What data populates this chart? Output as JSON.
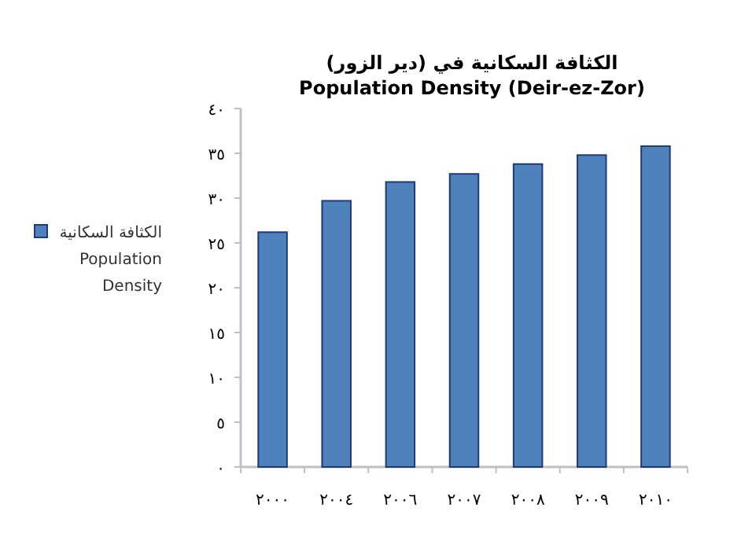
{
  "chart_data": {
    "type": "bar",
    "title": "الكثافة السكانية في (دير الزور)",
    "subtitle": "Population Density (Deir-ez-Zor)",
    "categories": [
      "٢٠٠٠",
      "٢٠٠٤",
      "٢٠٠٦",
      "٢٠٠٧",
      "٢٠٠٨",
      "٢٠٠٩",
      "٢٠١٠"
    ],
    "series": [
      {
        "name": "الكثافة السكانية\nPopulation\nDensity",
        "color": "#4f81bd",
        "values": [
          26.2,
          29.7,
          31.8,
          32.7,
          33.8,
          34.8,
          35.8
        ]
      }
    ],
    "ylim": [
      0,
      40
    ],
    "yticks": [
      {
        "value": 0,
        "label": "٠"
      },
      {
        "value": 5,
        "label": "٥"
      },
      {
        "value": 10,
        "label": "١٠"
      },
      {
        "value": 15,
        "label": "١٥"
      },
      {
        "value": 20,
        "label": "٢٠"
      },
      {
        "value": 25,
        "label": "٢٥"
      },
      {
        "value": 30,
        "label": "٣٠"
      },
      {
        "value": 35,
        "label": "٣٥"
      },
      {
        "value": 40,
        "label": "٤٠"
      }
    ],
    "legend": "left",
    "grid": false
  }
}
